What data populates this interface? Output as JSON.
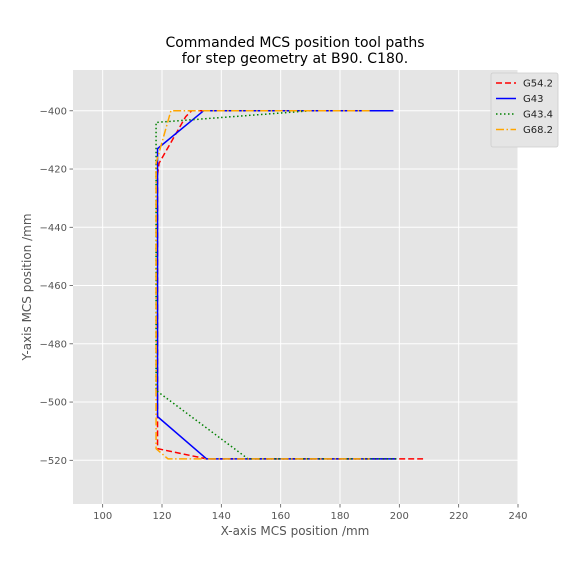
{
  "chart_data": {
    "type": "line",
    "title_lines": [
      "Commanded MCS position tool paths",
      "for step geometry at B90. C180."
    ],
    "xlabel": "X-axis MCS position /mm",
    "ylabel": "Y-axis MCS position /mm",
    "xlim": [
      90,
      240
    ],
    "ylim": [
      -535,
      -386
    ],
    "xticks": [
      100,
      120,
      140,
      160,
      180,
      200,
      220,
      240
    ],
    "yticks": [
      -400,
      -420,
      -440,
      -460,
      -480,
      -500,
      -520
    ],
    "grid": true,
    "legend_position": "top-right",
    "series": [
      {
        "name": "G54.2",
        "color": "#ff0000",
        "dash": "6,3",
        "points": [
          [
            198,
            -400
          ],
          [
            130,
            -400
          ],
          [
            128,
            -402
          ],
          [
            119,
            -418
          ],
          [
            118.5,
            -422
          ],
          [
            118.5,
            -516
          ],
          [
            135,
            -519.5
          ],
          [
            208,
            -519.5
          ]
        ]
      },
      {
        "name": "G43",
        "color": "#0000ff",
        "dash": "",
        "points": [
          [
            198,
            -400
          ],
          [
            134,
            -400
          ],
          [
            118.5,
            -413
          ],
          [
            118.5,
            -505
          ],
          [
            135,
            -519.5
          ],
          [
            199,
            -519.5
          ]
        ]
      },
      {
        "name": "G43.4",
        "color": "#008000",
        "dash": "1.5,2.5",
        "points": [
          [
            170,
            -400
          ],
          [
            118,
            -404
          ],
          [
            118,
            -496
          ],
          [
            149,
            -519.5
          ],
          [
            199,
            -519.5
          ]
        ]
      },
      {
        "name": "G68.2",
        "color": "#ffa500",
        "dash": "8,2.5,1.5,2.5",
        "points": [
          [
            190,
            -400
          ],
          [
            123,
            -400
          ],
          [
            118,
            -418
          ],
          [
            118,
            -516
          ],
          [
            122,
            -519.5
          ],
          [
            190,
            -519.5
          ]
        ]
      }
    ]
  }
}
